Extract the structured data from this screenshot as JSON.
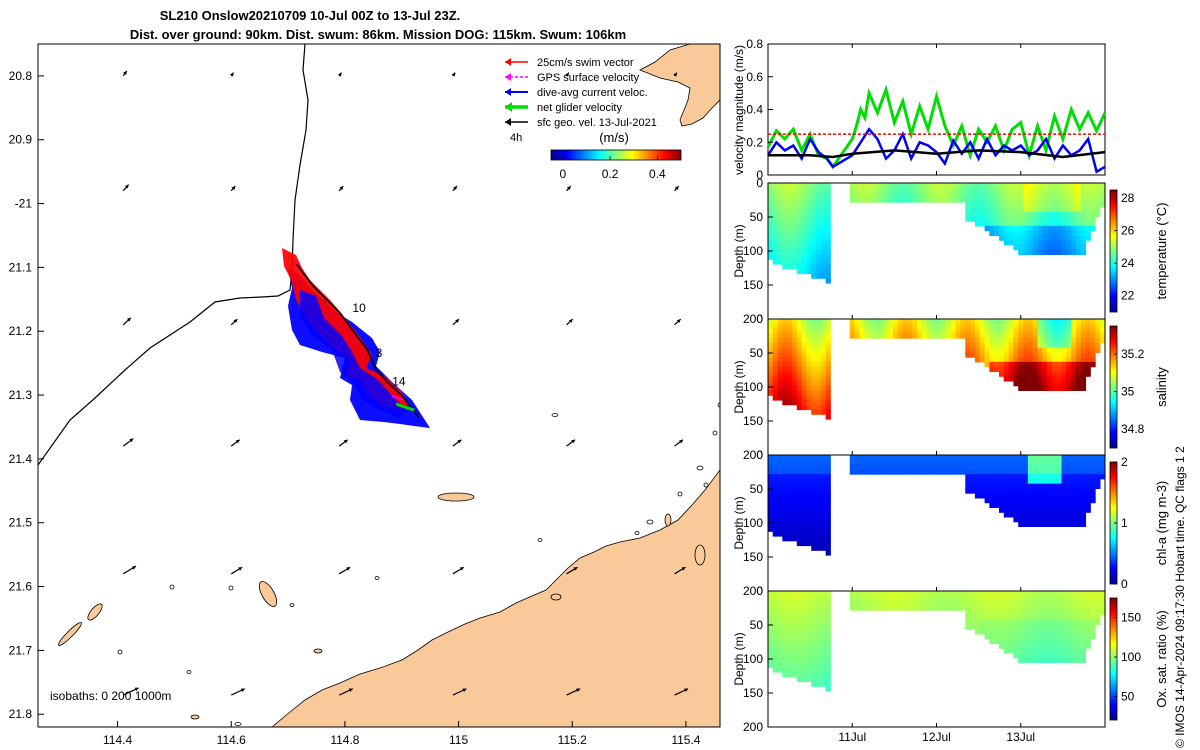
{
  "header": {
    "title_line1": "SL210 Onslow20210709 10-Jul 00Z to 13-Jul 23Z.",
    "title_line2": "Dist. over ground: 90km. Dist. swum: 86km. Mission DOG: 115km. Swum: 106km"
  },
  "colors": {
    "land": "#f9c99a",
    "swim": "#ff0000",
    "gps": "#ff00ff",
    "dive_avg": "#0000ff",
    "net": "#00dd00",
    "sfc": "#000000"
  },
  "chart_data": [
    {
      "type": "map",
      "xlim": [
        114.26,
        115.46
      ],
      "ylim": [
        -21.82,
        -20.75
      ],
      "x_ticks": [
        114.4,
        114.6,
        114.8,
        115,
        115.2,
        115.4
      ],
      "x_tick_labels": [
        "114.4",
        "114.6",
        "114.8",
        "115",
        "115.2",
        "115.4"
      ],
      "y_ticks": [
        -20.8,
        -20.9,
        -21,
        -21.1,
        -21.2,
        -21.3,
        -21.4,
        -21.5,
        -21.6,
        -21.7,
        -21.8
      ],
      "y_tick_labels": [
        "20.8",
        "20.9",
        "-21",
        "21.1",
        "21.2",
        "21.3",
        "21.4",
        "21.5",
        "21.6",
        "21.7",
        "21.8"
      ],
      "legend": {
        "position": "top-right",
        "entries": [
          "25cm/s swim vector",
          "GPS surface velocity",
          "dive-avg current veloc.",
          "net glider velocity",
          "sfc geo. vel. 13-Jul-2021"
        ],
        "interval_label": "4h"
      },
      "colorbar": {
        "label": "(m/s)",
        "ticks": [
          0,
          0.2,
          0.4
        ],
        "tick_labels": [
          "0",
          "0.2",
          "0.4"
        ],
        "range": [
          -0.05,
          0.5
        ]
      },
      "isobaths_label": "isobaths: 0   200  1000m",
      "track": [
        [
          114.715,
          -21.095
        ],
        [
          114.745,
          -21.13
        ],
        [
          114.79,
          -21.17
        ],
        [
          114.815,
          -21.2
        ],
        [
          114.84,
          -21.23
        ],
        [
          114.855,
          -21.26
        ],
        [
          114.875,
          -21.28
        ],
        [
          114.9,
          -21.3
        ],
        [
          114.93,
          -21.335
        ]
      ],
      "track_labels": [
        {
          "text": "10",
          "lon": 114.825,
          "lat": -21.17
        },
        {
          "text": "3",
          "lon": 114.86,
          "lat": -21.24
        },
        {
          "text": "14",
          "lon": 114.895,
          "lat": -21.285
        }
      ],
      "geo_vector_rows_lat": [
        -20.8,
        -20.98,
        -21.19,
        -21.38,
        -21.58,
        -21.77
      ],
      "geo_vector_cols_lon": [
        114.41,
        114.6,
        114.79,
        114.99,
        115.19,
        115.38
      ]
    },
    {
      "type": "line",
      "ylabel": "velocity magnitude (m/s)",
      "ylim": [
        0,
        0.8
      ],
      "y_ticks": [
        0,
        0.2,
        0.4,
        0.6,
        0.8
      ],
      "y_tick_labels": [
        "0",
        "0.2",
        "0.4",
        "0.6",
        "0.8"
      ],
      "xlim": [
        10,
        14
      ],
      "series": [
        {
          "color": "#00dd00",
          "x": [
            10,
            10.1,
            10.2,
            10.3,
            10.4,
            10.5,
            10.6,
            10.7,
            10.77,
            11,
            11.05,
            11.1,
            11.15,
            11.2,
            11.3,
            11.4,
            11.5,
            11.6,
            11.7,
            11.8,
            11.9,
            12,
            12.1,
            12.2,
            12.3,
            12.4,
            12.5,
            12.6,
            12.7,
            12.8,
            12.9,
            13,
            13.1,
            13.2,
            13.3,
            13.4,
            13.5,
            13.6,
            13.7,
            13.8,
            13.9,
            14
          ],
          "y": [
            0.17,
            0.27,
            0.22,
            0.28,
            0.15,
            0.25,
            0.12,
            0.1,
            0.05,
            0.22,
            0.3,
            0.4,
            0.35,
            0.5,
            0.38,
            0.52,
            0.32,
            0.45,
            0.25,
            0.42,
            0.28,
            0.48,
            0.3,
            0.18,
            0.3,
            0.12,
            0.28,
            0.2,
            0.3,
            0.15,
            0.28,
            0.32,
            0.12,
            0.3,
            0.15,
            0.36,
            0.22,
            0.4,
            0.28,
            0.38,
            0.27,
            0.38
          ]
        },
        {
          "color": "#0000ff",
          "x": [
            10,
            10.1,
            10.2,
            10.3,
            10.4,
            10.5,
            10.6,
            10.7,
            10.77,
            11,
            11.1,
            11.2,
            11.3,
            11.4,
            11.5,
            11.6,
            11.7,
            11.8,
            11.9,
            12,
            12.1,
            12.2,
            12.3,
            12.4,
            12.5,
            12.6,
            12.7,
            12.8,
            12.9,
            13,
            13.1,
            13.2,
            13.3,
            13.4,
            13.5,
            13.6,
            13.7,
            13.8,
            13.9,
            14
          ],
          "y": [
            0.12,
            0.2,
            0.15,
            0.18,
            0.1,
            0.22,
            0.14,
            0.1,
            0.05,
            0.12,
            0.2,
            0.28,
            0.22,
            0.1,
            0.15,
            0.25,
            0.1,
            0.2,
            0.18,
            0.14,
            0.07,
            0.21,
            0.13,
            0.2,
            0.1,
            0.22,
            0.12,
            0.18,
            0.15,
            0.18,
            0.12,
            0.15,
            0.22,
            0.1,
            0.18,
            0.12,
            0.15,
            0.22,
            0.02,
            0.05
          ]
        },
        {
          "color": "#000000",
          "x": [
            10,
            10.5,
            10.77,
            11,
            11.5,
            12,
            12.5,
            13,
            13.5,
            14
          ],
          "y": [
            0.12,
            0.12,
            0.11,
            0.13,
            0.15,
            0.13,
            0.15,
            0.14,
            0.11,
            0.14
          ]
        },
        {
          "color": "#ff0000",
          "dashed": true,
          "x": [
            10,
            10.77,
            11,
            14
          ],
          "y": [
            0.25,
            0.25,
            0.25,
            0.25
          ]
        }
      ]
    },
    {
      "type": "heatmap",
      "quantity": "temperature",
      "colorbar_label": "temperature (°C)",
      "cticks": [
        22,
        24,
        26,
        28
      ],
      "clim": [
        21,
        28.5
      ],
      "base": 24.8,
      "amp": 0.6,
      "ylabel": "Depth (m)",
      "ylim": [
        0,
        200
      ],
      "y_ticks": [
        0,
        50,
        100,
        150,
        200
      ],
      "y_tick_labels": [
        "0",
        "50",
        "100",
        "150",
        "200"
      ]
    },
    {
      "type": "heatmap",
      "quantity": "salinity",
      "colorbar_label": "salinity",
      "cticks": [
        34.8,
        35,
        35.2
      ],
      "ctick_labels": [
        "34.8",
        "35",
        "35.2"
      ],
      "clim": [
        34.7,
        35.35
      ],
      "base": 35.05,
      "amp": 0.22,
      "ylabel": "Depth (m)",
      "ylim": [
        0,
        200
      ],
      "y_ticks": [
        0,
        50,
        100,
        150,
        200
      ],
      "y_tick_labels": [
        "0",
        "50",
        "100",
        "150",
        "200"
      ]
    },
    {
      "type": "heatmap",
      "quantity": "chl-a",
      "colorbar_label": "chl-a (mg m-3)",
      "cticks": [
        0,
        1,
        2
      ],
      "clim": [
        0,
        2
      ],
      "base": 0.3,
      "amp": 0.15,
      "ylabel": "Depth (m)",
      "ylim": [
        0,
        200
      ],
      "y_ticks": [
        0,
        50,
        100,
        150,
        200
      ],
      "y_tick_labels": [
        "0",
        "50",
        "100",
        "150",
        "200"
      ]
    },
    {
      "type": "heatmap",
      "quantity": "oxygen",
      "colorbar_label": "Ox. sat. ratio (%)",
      "cticks": [
        50,
        100,
        150
      ],
      "clim": [
        20,
        175
      ],
      "base": 108,
      "amp": 4,
      "ylabel": "Depth (m)",
      "ylim": [
        0,
        200
      ],
      "y_ticks": [
        0,
        50,
        100,
        150,
        200
      ],
      "y_tick_labels": [
        "0",
        "50",
        "100",
        "150",
        "200"
      ]
    }
  ],
  "time_axis": {
    "xlim": [
      10,
      14
    ],
    "ticks": [
      11,
      12,
      13
    ],
    "tick_labels": [
      "11Jul",
      "12Jul",
      "13Jul"
    ]
  },
  "footer_side": "© IMOS 14-Apr-2024 09:17:30 Hobart time. QC flags 1  2"
}
